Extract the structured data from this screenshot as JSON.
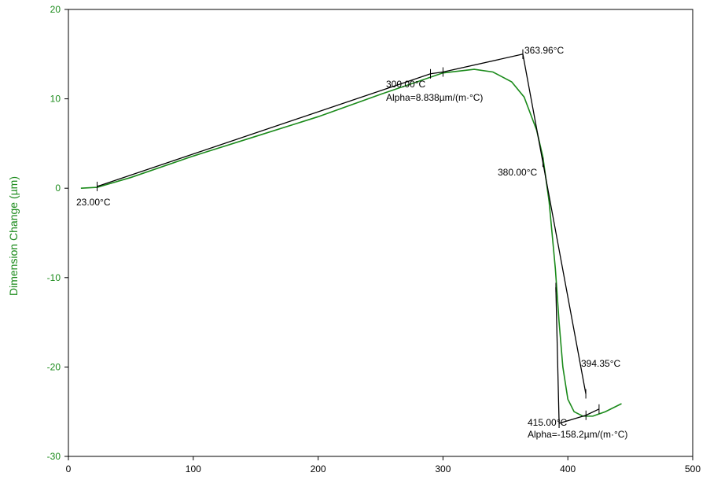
{
  "chart_data": {
    "type": "line",
    "y_label": "Dimension Change (µm)",
    "xlim": [
      0,
      500
    ],
    "xticks": [
      0,
      100,
      200,
      300,
      400,
      500
    ],
    "ylim": [
      -30,
      20
    ],
    "yticks": [
      -30,
      -20,
      -10,
      0,
      10,
      20
    ],
    "series": [
      {
        "color": "#1a8a1a",
        "x": [
          10,
          23,
          50,
          100,
          150,
          200,
          250,
          300,
          325,
          340,
          355,
          365,
          375,
          380,
          385,
          390,
          393,
          396,
          400,
          405,
          412,
          420,
          430,
          443
        ],
        "values": [
          0,
          0.1,
          1.2,
          3.6,
          5.8,
          8.0,
          10.5,
          12.9,
          13.3,
          13.0,
          11.9,
          10.2,
          6.5,
          3.5,
          -1.5,
          -9,
          -15,
          -20,
          -23.6,
          -25,
          -25.5,
          -25.5,
          -25,
          -24.1
        ]
      },
      {
        "color": "#000000",
        "x": [
          23,
          290,
          300,
          363.96
        ],
        "values": [
          0.2,
          12.8,
          13.0,
          15.0
        ]
      },
      {
        "color": "#000000",
        "x": [
          363.96,
          380,
          414.4
        ],
        "values": [
          15.0,
          2.9,
          -23.0
        ]
      },
      {
        "color": "#000000",
        "x": [
          390.4,
          393
        ],
        "values": [
          -11.1,
          -26.3
        ]
      },
      {
        "color": "#000000",
        "x": [
          393,
          414.5,
          425
        ],
        "values": [
          -26.3,
          -25.4,
          -24.7
        ]
      }
    ],
    "annotations": [
      "23.00°C",
      "300.00°C",
      "Alpha=8.838µm/(m·°C)",
      "363.96°C",
      "380.00°C",
      "394.35°C",
      "415.00°C",
      "Alpha=-158.2µm/(m·°C)"
    ]
  }
}
